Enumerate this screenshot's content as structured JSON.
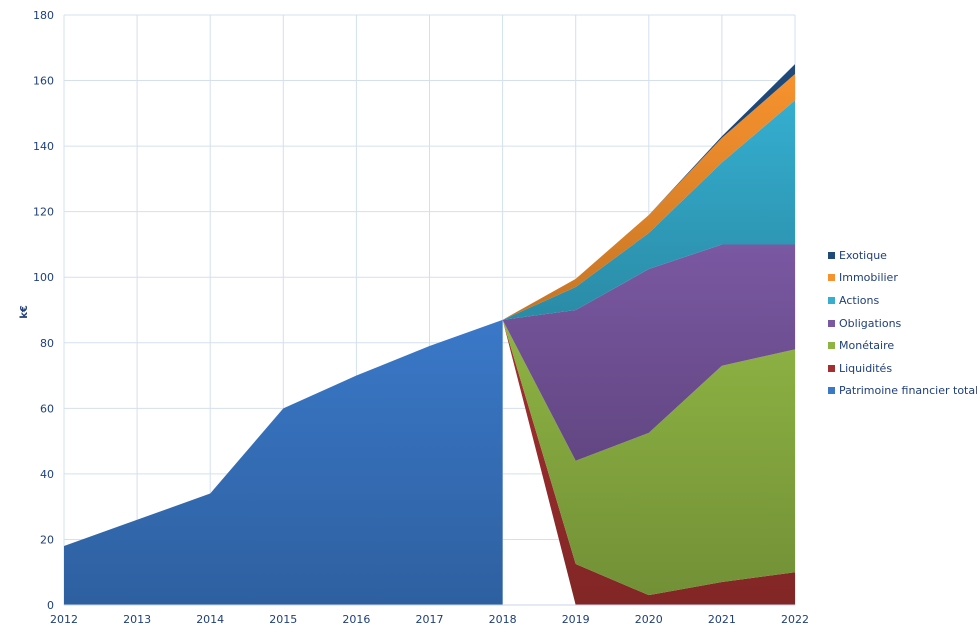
{
  "chart_data": {
    "type": "area",
    "stacked": true,
    "title": "",
    "xlabel": "",
    "ylabel": "k€",
    "x": [
      2012,
      2013,
      2014,
      2015,
      2016,
      2017,
      2018,
      2019,
      2020,
      2021,
      2022
    ],
    "xticks": [
      "2012",
      "2013",
      "2014",
      "2015",
      "2016",
      "2017",
      "2018",
      "2019",
      "2020",
      "2021",
      "2022"
    ],
    "yticks": [
      "0",
      "20",
      "40",
      "60",
      "80",
      "100",
      "120",
      "140",
      "160",
      "180"
    ],
    "ylim": [
      0,
      180
    ],
    "grid": true,
    "legend_position": "right",
    "series": [
      {
        "name": "Patrimoine financier total",
        "color": "#3a78c8",
        "values": [
          18,
          26,
          34,
          60,
          70,
          79,
          87,
          null,
          null,
          null,
          null
        ]
      },
      {
        "name": "Liquidités",
        "color": "#a33030",
        "values": [
          null,
          null,
          null,
          null,
          null,
          null,
          0,
          12.5,
          3,
          7,
          10
        ]
      },
      {
        "name": "Monétaire",
        "color": "#8fb444",
        "values": [
          null,
          null,
          null,
          null,
          null,
          null,
          0,
          31.5,
          49.5,
          66,
          68
        ]
      },
      {
        "name": "Obligations",
        "color": "#7a58a2",
        "values": [
          null,
          null,
          null,
          null,
          null,
          null,
          0,
          46,
          50,
          37,
          32
        ]
      },
      {
        "name": "Actions",
        "color": "#35aed0",
        "values": [
          null,
          null,
          null,
          null,
          null,
          null,
          0,
          7,
          11,
          25,
          44
        ]
      },
      {
        "name": "Immobilier",
        "color": "#f7922e",
        "values": [
          null,
          null,
          null,
          null,
          null,
          null,
          0,
          2.5,
          5.5,
          7.5,
          8
        ]
      },
      {
        "name": "Exotique",
        "color": "#1f4a7a",
        "values": [
          null,
          null,
          null,
          null,
          null,
          null,
          0,
          0,
          0,
          0.5,
          3
        ]
      }
    ]
  }
}
